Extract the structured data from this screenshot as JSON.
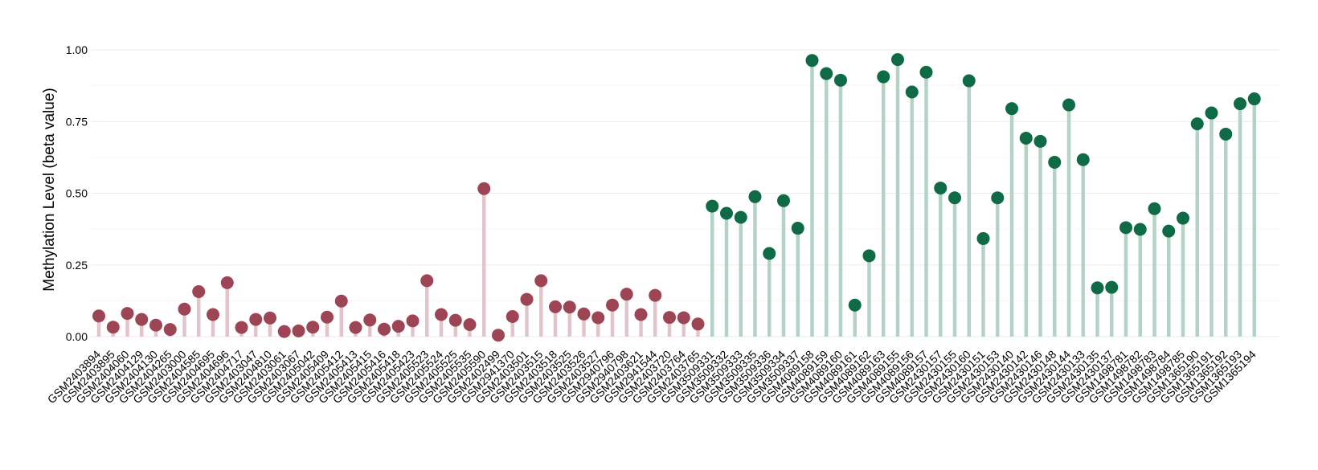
{
  "chart_data": {
    "type": "lollipop",
    "title": "",
    "xlabel": "",
    "ylabel": "Methylation Level (beta value)",
    "ylim": [
      0,
      1.0
    ],
    "yticks": [
      0.0,
      0.25,
      0.5,
      0.75,
      1.0
    ],
    "ytick_labels": [
      "0.00",
      "0.25",
      "0.50",
      "0.75",
      "1.00"
    ],
    "grid": true,
    "legend": "none",
    "groups": [
      {
        "color": "#9E4555",
        "stem_color": "#E2C5CB"
      },
      {
        "color": "#0E6B45",
        "stem_color": "#B4D3C5"
      }
    ],
    "categories": [
      "GSM2403894",
      "GSM2403895",
      "GSM2404060",
      "GSM2404129",
      "GSM2404130",
      "GSM2404265",
      "GSM2403000",
      "GSM2404585",
      "GSM2404695",
      "GSM2404696",
      "GSM2404717",
      "GSM2403047",
      "GSM2404810",
      "GSM2403061",
      "GSM2403067",
      "GSM2405042",
      "GSM2405409",
      "GSM2405412",
      "GSM2405413",
      "GSM2405415",
      "GSM2405416",
      "GSM2405418",
      "GSM2405423",
      "GSM2405523",
      "GSM2405524",
      "GSM2405525",
      "GSM2405535",
      "GSM2405590",
      "GSM2402499",
      "GSM2941370",
      "GSM2403501",
      "GSM2403515",
      "GSM2403518",
      "GSM2403525",
      "GSM2403526",
      "GSM2403527",
      "GSM2940796",
      "GSM2940798",
      "GSM2403621",
      "GSM2941544",
      "GSM2403720",
      "GSM2403764",
      "GSM2403765",
      "GSM3509331",
      "GSM3509332",
      "GSM3509333",
      "GSM3509335",
      "GSM3509336",
      "GSM3509334",
      "GSM3509337",
      "GSM4089158",
      "GSM4089159",
      "GSM4089160",
      "GSM4089161",
      "GSM4089162",
      "GSM4089163",
      "GSM4089155",
      "GSM4089156",
      "GSM4089157",
      "GSM2430157",
      "GSM2430155",
      "GSM2430160",
      "GSM2430151",
      "GSM2430153",
      "GSM2430140",
      "GSM2430142",
      "GSM2430146",
      "GSM2430148",
      "GSM2430144",
      "GSM2430133",
      "GSM2430135",
      "GSM2430137",
      "GSM1498781",
      "GSM1498782",
      "GSM1498783",
      "GSM1498784",
      "GSM1498785",
      "GSM1365190",
      "GSM1365191",
      "GSM1365192",
      "GSM1365193",
      "GSM1365194"
    ],
    "values": [
      0.072,
      0.033,
      0.081,
      0.06,
      0.04,
      0.025,
      0.096,
      0.157,
      0.077,
      0.188,
      0.032,
      0.06,
      0.065,
      0.018,
      0.02,
      0.033,
      0.068,
      0.124,
      0.032,
      0.058,
      0.026,
      0.036,
      0.055,
      0.195,
      0.077,
      0.057,
      0.042,
      0.516,
      0.005,
      0.07,
      0.13,
      0.195,
      0.104,
      0.103,
      0.079,
      0.066,
      0.11,
      0.148,
      0.077,
      0.144,
      0.067,
      0.066,
      0.044,
      0.455,
      0.43,
      0.416,
      0.488,
      0.29,
      0.474,
      0.378,
      0.963,
      0.917,
      0.894,
      0.11,
      0.282,
      0.906,
      0.966,
      0.853,
      0.922,
      0.518,
      0.484,
      0.892,
      0.342,
      0.484,
      0.795,
      0.692,
      0.681,
      0.608,
      0.808,
      0.617,
      0.17,
      0.172,
      0.38,
      0.374,
      0.446,
      0.368,
      0.413,
      0.742,
      0.78,
      0.706,
      0.812,
      0.829
    ],
    "group_index": [
      0,
      0,
      0,
      0,
      0,
      0,
      0,
      0,
      0,
      0,
      0,
      0,
      0,
      0,
      0,
      0,
      0,
      0,
      0,
      0,
      0,
      0,
      0,
      0,
      0,
      0,
      0,
      0,
      0,
      0,
      0,
      0,
      0,
      0,
      0,
      0,
      0,
      0,
      0,
      0,
      0,
      0,
      0,
      1,
      1,
      1,
      1,
      1,
      1,
      1,
      1,
      1,
      1,
      1,
      1,
      1,
      1,
      1,
      1,
      1,
      1,
      1,
      1,
      1,
      1,
      1,
      1,
      1,
      1,
      1,
      1,
      1,
      1,
      1,
      1,
      1,
      1,
      1,
      1,
      1,
      1,
      1
    ]
  }
}
